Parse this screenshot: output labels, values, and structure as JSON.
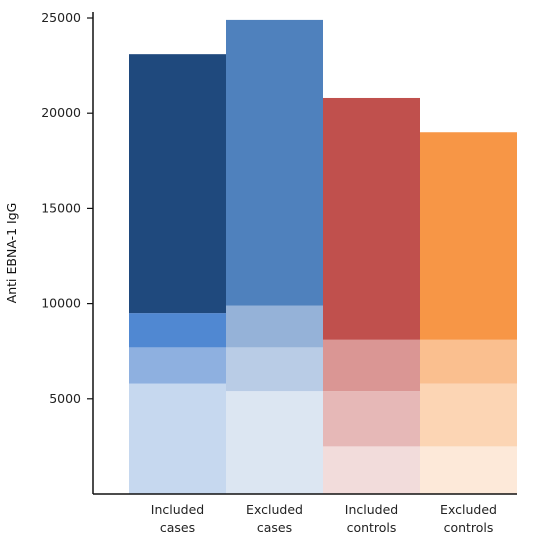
{
  "chart_data": {
    "type": "bar",
    "ylabel": "Anti EBNA-1 IgG",
    "xlabel": "",
    "ylim": [
      0,
      25000
    ],
    "yticks": [
      5000,
      10000,
      15000,
      20000,
      25000
    ],
    "grid": false,
    "categories": [
      {
        "line1": "Included",
        "line2": "cases"
      },
      {
        "line1": "Excluded",
        "line2": "cases"
      },
      {
        "line1": "Included",
        "line2": "controls"
      },
      {
        "line1": "Excluded",
        "line2": "controls"
      }
    ],
    "stacks": [
      {
        "segments": [
          {
            "from": 0,
            "to": 5800,
            "color": "#c6d8ef"
          },
          {
            "from": 5800,
            "to": 7700,
            "color": "#8eb0e0"
          },
          {
            "from": 7700,
            "to": 9500,
            "color": "#5088d2"
          },
          {
            "from": 9500,
            "to": 23100,
            "color": "#1f497d"
          }
        ]
      },
      {
        "segments": [
          {
            "from": 0,
            "to": 5400,
            "color": "#dce6f2"
          },
          {
            "from": 5400,
            "to": 7700,
            "color": "#b9cce6"
          },
          {
            "from": 7700,
            "to": 9900,
            "color": "#95b2d8"
          },
          {
            "from": 9900,
            "to": 24900,
            "color": "#4f81bd"
          }
        ]
      },
      {
        "segments": [
          {
            "from": 0,
            "to": 2500,
            "color": "#f2dcdb"
          },
          {
            "from": 2500,
            "to": 5400,
            "color": "#e6b8b7"
          },
          {
            "from": 5400,
            "to": 8100,
            "color": "#da9694"
          },
          {
            "from": 8100,
            "to": 20800,
            "color": "#c0504d"
          }
        ]
      },
      {
        "segments": [
          {
            "from": 0,
            "to": 2500,
            "color": "#fde9d9"
          },
          {
            "from": 2500,
            "to": 5800,
            "color": "#fcd5b4"
          },
          {
            "from": 5800,
            "to": 8100,
            "color": "#fabf8f"
          },
          {
            "from": 8100,
            "to": 19000,
            "color": "#f79646"
          }
        ]
      }
    ]
  }
}
